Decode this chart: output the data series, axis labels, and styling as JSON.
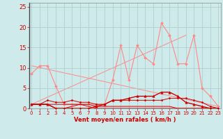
{
  "bg_color": "#ceeaea",
  "grid_color": "#aacaca",
  "line_color_dark": "#cc0000",
  "line_color_light": "#ff8888",
  "xlabel": "Vent moyen/en rafales ( km/h )",
  "xlabel_color": "#cc0000",
  "yticks": [
    0,
    5,
    10,
    15,
    20,
    25
  ],
  "xticks": [
    0,
    1,
    2,
    3,
    4,
    5,
    6,
    7,
    8,
    9,
    10,
    11,
    12,
    13,
    14,
    15,
    16,
    17,
    18,
    19,
    20,
    21,
    22,
    23
  ],
  "xlim": [
    -0.3,
    23.3
  ],
  "ylim": [
    0,
    26
  ],
  "series": [
    {
      "x": [
        0,
        1,
        2,
        3,
        4,
        5,
        6,
        7,
        8,
        9,
        10,
        11,
        12,
        13,
        14,
        15,
        16,
        17,
        18,
        19,
        20,
        21,
        22,
        23
      ],
      "y": [
        8.5,
        10.5,
        10.5,
        5.5,
        1,
        1,
        1,
        1,
        1,
        1,
        7,
        15.5,
        7,
        15.5,
        12.5,
        11,
        21,
        18,
        11,
        11,
        18,
        5,
        3,
        0.5
      ],
      "color": "#ff8888",
      "lw": 0.8,
      "marker": "D",
      "ms": 2.0,
      "zorder": 2
    },
    {
      "x": [
        0,
        1,
        2,
        3,
        4,
        5,
        6,
        7,
        8,
        9,
        10,
        11,
        12,
        13,
        14,
        15,
        16,
        17,
        18,
        19,
        20,
        21,
        22,
        23
      ],
      "y": [
        1,
        1,
        1,
        0,
        0,
        0,
        0,
        0,
        0,
        0,
        0,
        0,
        0,
        0,
        0,
        0,
        0,
        0,
        0,
        0,
        0,
        0,
        0,
        0
      ],
      "color": "#ff8888",
      "lw": 0.7,
      "marker": "D",
      "ms": 1.5,
      "zorder": 2
    },
    {
      "x": [
        0,
        23
      ],
      "y": [
        10.5,
        0.5
      ],
      "color": "#ff8888",
      "lw": 0.7,
      "marker": null,
      "ms": 0,
      "zorder": 1
    },
    {
      "x": [
        0,
        19
      ],
      "y": [
        1,
        18
      ],
      "color": "#ff8888",
      "lw": 0.7,
      "marker": null,
      "ms": 0,
      "zorder": 1
    },
    {
      "x": [
        0,
        1,
        2,
        3,
        4,
        5,
        6,
        7,
        8,
        9,
        10,
        11,
        12,
        13,
        14,
        15,
        16,
        17,
        18,
        19,
        20,
        21,
        22,
        23
      ],
      "y": [
        1,
        1,
        1,
        0,
        0,
        0,
        0,
        0,
        0.5,
        1,
        2,
        2,
        2.5,
        3,
        3,
        3,
        4,
        4,
        3,
        1.5,
        1,
        0.5,
        0,
        0
      ],
      "color": "#cc0000",
      "lw": 1.0,
      "marker": "^",
      "ms": 2.5,
      "zorder": 4
    },
    {
      "x": [
        0,
        1,
        2,
        3,
        4,
        5,
        6,
        7,
        8,
        9,
        10,
        11,
        12,
        13,
        14,
        15,
        16,
        17,
        18,
        19,
        20,
        21,
        22,
        23
      ],
      "y": [
        1,
        1,
        2,
        1.5,
        1.5,
        2,
        1.5,
        1.5,
        1,
        1,
        2,
        2,
        2,
        2,
        2,
        2,
        2,
        2.5,
        2.5,
        2.5,
        2,
        1.5,
        0.5,
        0
      ],
      "color": "#cc0000",
      "lw": 0.7,
      "marker": "D",
      "ms": 1.5,
      "zorder": 3
    },
    {
      "x": [
        0,
        1,
        2,
        3,
        4,
        5,
        6,
        7,
        8,
        9,
        10,
        11,
        12,
        13,
        14,
        15,
        16,
        17,
        18,
        19,
        20,
        21,
        22,
        23
      ],
      "y": [
        1,
        1,
        1,
        1,
        1,
        1,
        1,
        1,
        0.5,
        0.5,
        0.5,
        0.5,
        0.5,
        0.5,
        0.5,
        0.5,
        0.5,
        0.5,
        0,
        0,
        0,
        0,
        0,
        0
      ],
      "color": "#cc0000",
      "lw": 0.7,
      "marker": null,
      "ms": 0,
      "zorder": 2
    },
    {
      "x": [
        0,
        1,
        2,
        3,
        4,
        5,
        6,
        7,
        8,
        9,
        10,
        11,
        12,
        13,
        14,
        15,
        16,
        17,
        18,
        19,
        20,
        21,
        22,
        23
      ],
      "y": [
        1,
        1,
        1,
        0,
        0,
        0.5,
        1,
        0.5,
        0,
        0,
        0,
        0,
        0,
        0,
        0,
        0,
        0,
        0,
        0,
        0,
        0,
        0,
        0,
        0
      ],
      "color": "#cc0000",
      "lw": 0.7,
      "marker": null,
      "ms": 0,
      "zorder": 2
    }
  ]
}
